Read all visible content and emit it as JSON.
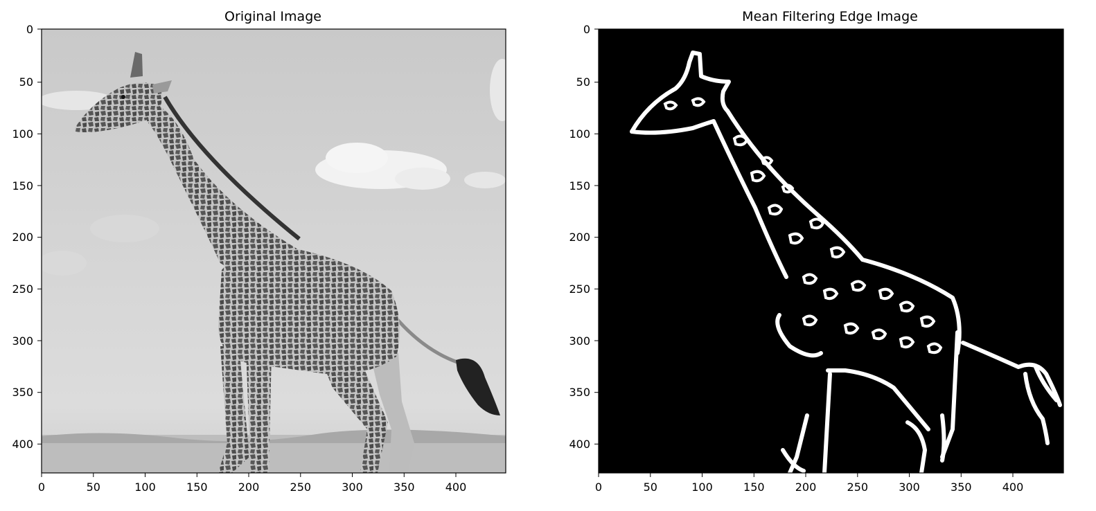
{
  "panels": [
    {
      "id": "original",
      "title": "Original Image",
      "x_ticks": [
        "0",
        "50",
        "100",
        "150",
        "200",
        "250",
        "300",
        "350",
        "400"
      ],
      "y_ticks": [
        "0",
        "50",
        "100",
        "150",
        "200",
        "250",
        "300",
        "350",
        "400"
      ],
      "xlim": [
        0,
        448
      ],
      "ylim": [
        0,
        429
      ],
      "content": "grayscale photo of a giraffe walking left on savanna under a cloudy sky"
    },
    {
      "id": "edges",
      "title": "Mean Filtering Edge Image",
      "x_ticks": [
        "0",
        "50",
        "100",
        "150",
        "200",
        "250",
        "300",
        "350",
        "400"
      ],
      "y_ticks": [
        "0",
        "50",
        "100",
        "150",
        "200",
        "250",
        "300",
        "350",
        "400"
      ],
      "xlim": [
        0,
        448
      ],
      "ylim": [
        0,
        429
      ],
      "content": "binary edge map: white giraffe outline and spot edges on black"
    }
  ],
  "colors": {
    "sky": "#cfcfcf",
    "ground": "#bdbdbd",
    "giraffe_body": "#9a9a9a",
    "giraffe_spots": "#4a4a4a",
    "edge_bg": "#000000",
    "edge_line": "#ffffff"
  }
}
